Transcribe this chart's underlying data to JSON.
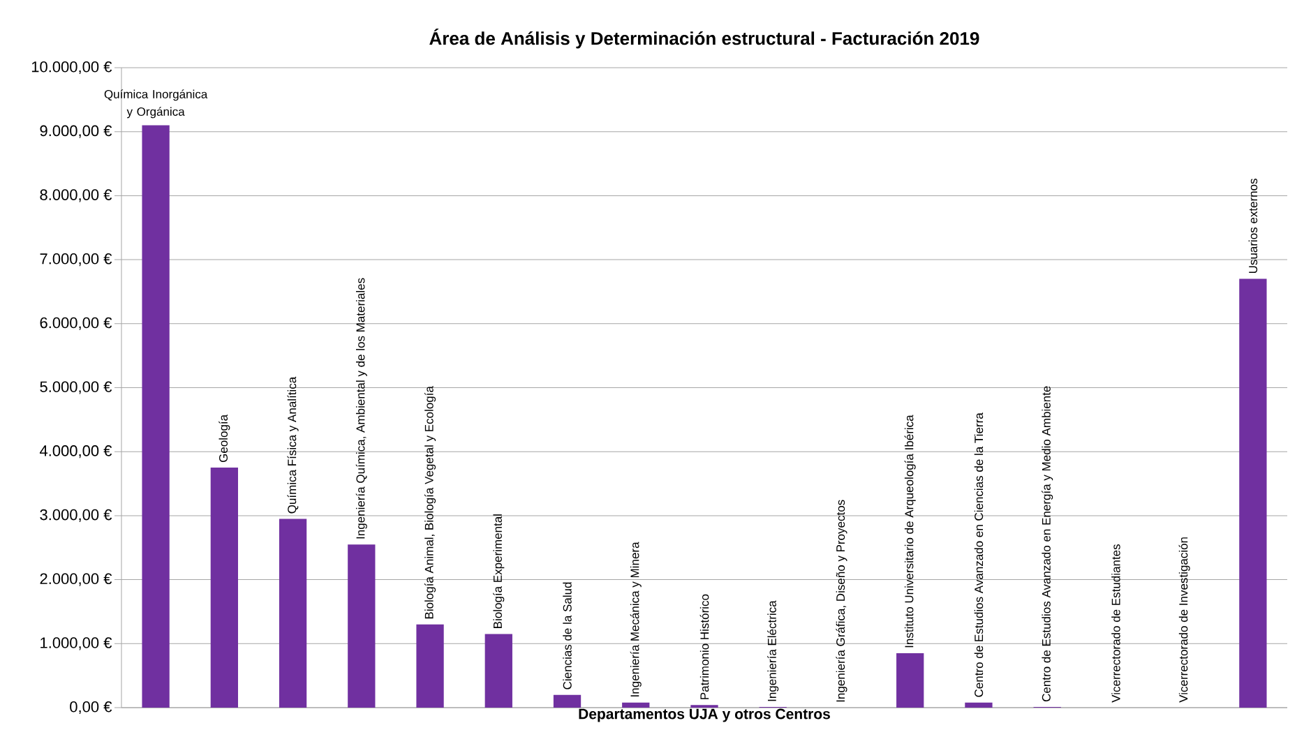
{
  "chart_data": {
    "type": "bar",
    "title": "Área de Análisis y Determinación estructural  - Facturación 2019",
    "xlabel": "Departamentos UJA y otros Centros",
    "categories": [
      "Química Inorgánica y Orgánica",
      "Geología",
      "Química Física y Analítica",
      "Ingeniería Química, Ambiental y de los Materiales",
      "Biología Animal, Biología Vegetal y Ecología",
      "Biología Experimental",
      "Ciencias de la Salud",
      "Ingeniería Mecánica y Minera",
      "Patrimonio Histórico",
      "Ingeniería Eléctrica",
      "Ingeniería Gráfica, Diseño y Proyectos",
      "Instituto Universitario de Arqueología Ibérica",
      "Centro de Estudios Avanzado en Ciencias de la Tierra",
      "Centro de Estudios Avanzado en Energía y Medio Ambiente",
      "Vicerrectorado de Estudiantes",
      "Vicerrectorado de Investigación",
      "Usuarios externos"
    ],
    "values": [
      9100,
      3750,
      2950,
      2550,
      1300,
      1150,
      200,
      80,
      40,
      10,
      0,
      850,
      80,
      10,
      0,
      0,
      6700
    ],
    "color": "#7030a0",
    "ylim": [
      0,
      10000
    ],
    "yticks": [
      {
        "value": 0,
        "label": "0,00 €"
      },
      {
        "value": 1000,
        "label": "1.000,00 €"
      },
      {
        "value": 2000,
        "label": "2.000,00 €"
      },
      {
        "value": 3000,
        "label": "3.000,00 €"
      },
      {
        "value": 4000,
        "label": "4.000,00 €"
      },
      {
        "value": 5000,
        "label": "5.000,00 €"
      },
      {
        "value": 6000,
        "label": "6.000,00 €"
      },
      {
        "value": 7000,
        "label": "7.000,00 €"
      },
      {
        "value": 8000,
        "label": "8.000,00 €"
      },
      {
        "value": 9000,
        "label": "9.000,00 €"
      },
      {
        "value": 10000,
        "label": "10.000,00 €"
      }
    ],
    "grid": "y"
  }
}
